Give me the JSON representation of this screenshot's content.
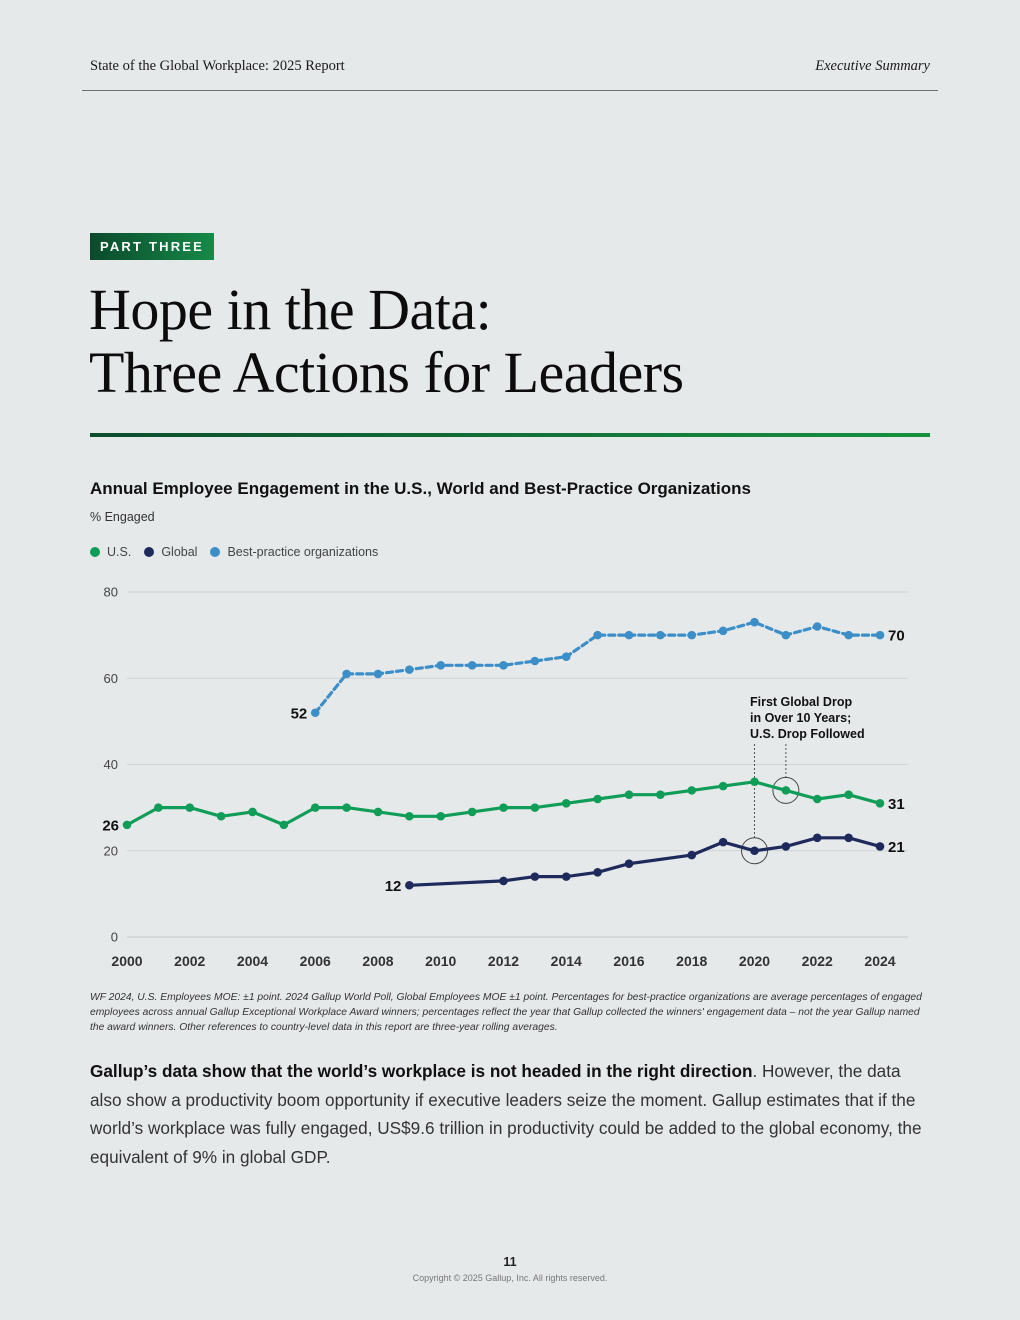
{
  "header": {
    "report_title": "State of the Global Workplace: 2025 Report",
    "section": "Executive Summary"
  },
  "part_label": "PART THREE",
  "title_lines": [
    "Hope in the Data:",
    "Three Actions for Leaders"
  ],
  "chart_data": {
    "type": "line",
    "title": "Annual Employee Engagement in the U.S., World and Best-Practice Organizations",
    "subtitle": "% Engaged",
    "ylim": [
      0,
      80
    ],
    "yticks": [
      0,
      20,
      40,
      60,
      80
    ],
    "xlim": [
      2000,
      2024
    ],
    "xticks": [
      2000,
      2002,
      2004,
      2006,
      2008,
      2010,
      2012,
      2014,
      2016,
      2018,
      2020,
      2022,
      2024
    ],
    "grid": true,
    "legend_position": "top-left",
    "series": [
      {
        "name": "U.S.",
        "color": "#0f9d58",
        "dashed": false,
        "x": [
          2000,
          2001,
          2002,
          2003,
          2004,
          2005,
          2006,
          2007,
          2008,
          2009,
          2010,
          2011,
          2012,
          2013,
          2014,
          2015,
          2016,
          2017,
          2018,
          2019,
          2020,
          2021,
          2022,
          2023,
          2024
        ],
        "y": [
          26,
          30,
          30,
          28,
          29,
          26,
          30,
          30,
          29,
          28,
          28,
          29,
          30,
          30,
          31,
          32,
          33,
          33,
          34,
          35,
          36,
          34,
          32,
          33,
          31
        ],
        "start_label": "26",
        "end_label": "31"
      },
      {
        "name": "Global",
        "color": "#1f2a5c",
        "dashed": false,
        "x": [
          2009,
          2012,
          2013,
          2014,
          2015,
          2016,
          2018,
          2019,
          2020,
          2021,
          2022,
          2023,
          2024
        ],
        "y": [
          12,
          13,
          14,
          14,
          15,
          17,
          19,
          22,
          20,
          21,
          23,
          23,
          21
        ],
        "start_label": "12",
        "end_label": "21"
      },
      {
        "name": "Best-practice organizations",
        "color": "#3c8ec8",
        "dashed": true,
        "x": [
          2006,
          2007,
          2008,
          2009,
          2010,
          2011,
          2012,
          2013,
          2014,
          2015,
          2016,
          2017,
          2018,
          2019,
          2020,
          2021,
          2022,
          2023,
          2024
        ],
        "y": [
          52,
          61,
          61,
          62,
          63,
          63,
          63,
          64,
          65,
          70,
          70,
          70,
          70,
          71,
          73,
          70,
          72,
          70,
          70
        ],
        "start_label": "52",
        "end_label": "70"
      }
    ],
    "annotation": {
      "lines": [
        "First Global Drop",
        "in Over 10 Years;",
        "U.S. Drop Followed"
      ],
      "circled_points": [
        {
          "series": "Global",
          "x": 2020,
          "y": 20
        },
        {
          "series": "U.S.",
          "x": 2021,
          "y": 34
        }
      ]
    }
  },
  "footnote": "WF 2024, U.S. Employees MOE: ±1 point. 2024 Gallup World Poll, Global Employees MOE ±1 point. Percentages for best-practice organizations are average percentages of engaged employees across annual Gallup Exceptional Workplace Award winners; percentages reflect the year that Gallup collected the winners' engagement data – not the year Gallup named the award winners. Other references to country-level data in this report are three-year rolling averages.",
  "body": {
    "lead": "Gallup’s data show that the world’s workplace is not headed in the right direction",
    "rest": ". However, the data also show a productivity boom opportunity if executive leaders seize the moment. Gallup estimates that if the world’s workplace was fully engaged, US$9.6 trillion in productivity could be added to the global economy, the equivalent of 9% in global GDP."
  },
  "footer": {
    "page_number": "11",
    "copyright": "Copyright © 2025 Gallup, Inc. All rights reserved."
  }
}
